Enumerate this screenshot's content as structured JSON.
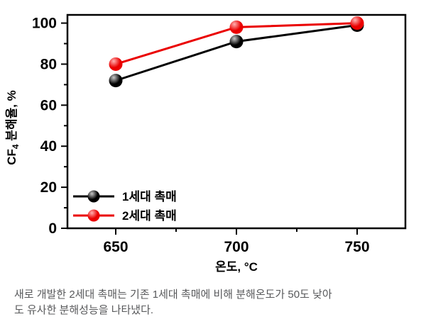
{
  "page": {
    "background": "#ffffff"
  },
  "chart_data": {
    "type": "line",
    "title": "",
    "xlabel": "온도, °C",
    "ylabel": "CF4 분해율, %",
    "ylabel_rich": {
      "prefix": "CF",
      "sub": "4",
      "suffix": " 분해율, %"
    },
    "xlim": [
      630,
      770
    ],
    "ylim": [
      0,
      104
    ],
    "x_major_ticks": [
      650,
      700,
      750
    ],
    "x_minor_ticks": [
      675,
      725
    ],
    "y_major_ticks": [
      0,
      20,
      40,
      60,
      80,
      100
    ],
    "y_minor_ticks": [
      10,
      30,
      50,
      70,
      90
    ],
    "grid": false,
    "frame": true,
    "legend_position": "lower-left-inside",
    "x": [
      650,
      700,
      750
    ],
    "series": [
      {
        "name": "1세대 촉매",
        "color": "#000000",
        "highlight": "#c9c9c9",
        "values": [
          72,
          91,
          99
        ]
      },
      {
        "name": "2세대 촉매",
        "color": "#ea0000",
        "highlight": "#ffb0b0",
        "values": [
          80,
          98,
          100
        ]
      }
    ],
    "axis_color": "#000000"
  },
  "caption": {
    "color": "#58595b",
    "lines": [
      "새로 개발한 2세대 촉매는 기존 1세대 촉매에 비해 분해온도가 50도 낮아",
      "도 유사한 분해성능을 나타냈다."
    ]
  }
}
